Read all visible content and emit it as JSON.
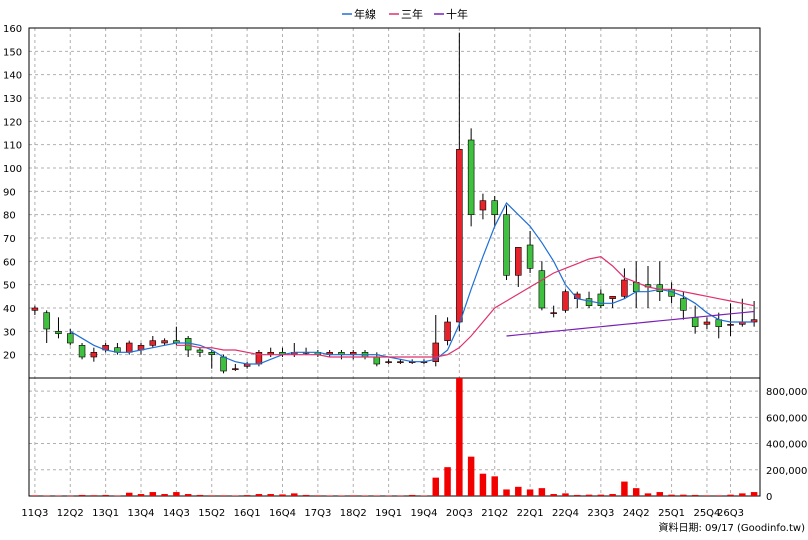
{
  "chart_data": {
    "type": "candlestick+volume",
    "legend": [
      {
        "name": "年線",
        "color": "#1f6fd6"
      },
      {
        "name": "三年",
        "color": "#e0306e"
      },
      {
        "name": "十年",
        "color": "#7a1fb5"
      }
    ],
    "price_axis": {
      "range": [
        10,
        160
      ],
      "ticks": [
        20,
        30,
        40,
        50,
        60,
        70,
        80,
        90,
        100,
        110,
        120,
        130,
        140,
        150,
        160
      ]
    },
    "volume_axis": {
      "range": [
        0,
        900000
      ],
      "tick_values": [
        0,
        200000,
        400000,
        600000,
        800000
      ],
      "tick_labels": [
        "0",
        "200,000",
        "400,000",
        "600,000",
        "800,000"
      ]
    },
    "x_labels": [
      {
        "i": 0,
        "label": "11Q3"
      },
      {
        "i": 3,
        "label": "12Q2"
      },
      {
        "i": 6,
        "label": "13Q1"
      },
      {
        "i": 9,
        "label": "13Q4"
      },
      {
        "i": 12,
        "label": "14Q3"
      },
      {
        "i": 15,
        "label": "15Q2"
      },
      {
        "i": 18,
        "label": "16Q1"
      },
      {
        "i": 21,
        "label": "16Q4"
      },
      {
        "i": 24,
        "label": "17Q3"
      },
      {
        "i": 27,
        "label": "18Q2"
      },
      {
        "i": 30,
        "label": "19Q1"
      },
      {
        "i": 33,
        "label": "19Q4"
      },
      {
        "i": 36,
        "label": "20Q3"
      },
      {
        "i": 39,
        "label": "21Q2"
      },
      {
        "i": 42,
        "label": "22Q1"
      },
      {
        "i": 45,
        "label": "22Q4"
      },
      {
        "i": 48,
        "label": "23Q3"
      },
      {
        "i": 51,
        "label": "24Q2"
      },
      {
        "i": 54,
        "label": "25Q1"
      },
      {
        "i": 57,
        "label": "25Q4"
      },
      {
        "i": 59,
        "label": "26Q3"
      }
    ],
    "candles": [
      [
        39,
        41,
        37,
        40
      ],
      [
        38,
        39,
        25,
        31
      ],
      [
        30,
        36,
        27,
        29
      ],
      [
        29,
        31,
        24,
        25
      ],
      [
        24,
        25,
        18,
        19
      ],
      [
        19,
        23,
        17,
        21
      ],
      [
        22,
        25,
        21,
        24
      ],
      [
        23,
        25,
        20,
        21
      ],
      [
        21,
        26,
        20,
        25
      ],
      [
        22,
        25,
        20,
        24
      ],
      [
        24,
        28,
        23,
        26
      ],
      [
        25,
        27,
        24,
        26
      ],
      [
        26,
        32,
        24,
        25
      ],
      [
        27,
        28,
        19,
        22
      ],
      [
        22,
        23,
        19,
        21
      ],
      [
        21,
        22,
        14,
        20
      ],
      [
        19,
        20,
        12,
        13
      ],
      [
        14,
        16,
        13,
        14
      ],
      [
        15,
        17,
        14,
        16
      ],
      [
        16,
        22,
        15,
        21
      ],
      [
        20,
        23,
        19,
        21
      ],
      [
        21,
        23,
        19,
        20
      ],
      [
        20,
        25,
        19,
        21
      ],
      [
        21,
        23,
        20,
        21
      ],
      [
        21,
        22,
        19,
        20
      ],
      [
        20,
        22,
        19,
        21
      ],
      [
        21,
        22,
        18,
        20
      ],
      [
        20,
        22,
        18,
        21
      ],
      [
        21,
        22,
        18,
        19
      ],
      [
        19,
        21,
        15,
        16
      ],
      [
        17,
        18,
        16,
        17
      ],
      [
        17,
        18,
        16,
        17
      ],
      [
        17,
        18,
        16,
        17
      ],
      [
        17,
        18,
        16,
        17
      ],
      [
        17,
        37,
        15,
        25
      ],
      [
        26,
        36,
        24,
        34
      ],
      [
        34,
        158,
        30,
        108
      ],
      [
        112,
        117,
        75,
        80
      ],
      [
        82,
        89,
        78,
        86
      ],
      [
        86,
        88,
        75,
        80
      ],
      [
        80,
        84,
        52,
        54
      ],
      [
        54,
        66,
        49,
        66
      ],
      [
        67,
        73,
        55,
        57
      ],
      [
        56,
        60,
        39,
        40
      ],
      [
        38,
        41,
        36,
        38
      ],
      [
        39,
        48,
        38,
        47
      ],
      [
        44,
        47,
        40,
        46
      ],
      [
        44,
        47,
        40,
        41
      ],
      [
        46,
        48,
        40,
        41
      ],
      [
        44,
        45,
        40,
        45
      ],
      [
        45,
        57,
        44,
        52
      ],
      [
        51,
        60,
        40,
        47
      ],
      [
        50,
        58,
        40,
        49
      ],
      [
        50,
        60,
        43,
        47
      ],
      [
        48,
        51,
        42,
        45
      ],
      [
        44,
        47,
        35,
        39
      ],
      [
        36,
        41,
        29,
        32
      ],
      [
        33,
        36,
        31,
        34
      ],
      [
        35,
        38,
        27,
        32
      ],
      [
        33,
        42,
        28,
        33
      ],
      [
        33,
        44,
        32,
        34
      ],
      [
        34,
        43,
        32,
        35
      ]
    ],
    "volume": [
      5000,
      3000,
      3000,
      2000,
      8000,
      6000,
      8000,
      3000,
      25000,
      15000,
      30000,
      15000,
      30000,
      15000,
      8000,
      5000,
      5000,
      4000,
      7000,
      15000,
      15000,
      12000,
      20000,
      8000,
      5000,
      4000,
      4000,
      5000,
      4000,
      4000,
      3000,
      3000,
      8000,
      4000,
      140000,
      220000,
      900000,
      300000,
      170000,
      150000,
      50000,
      70000,
      50000,
      60000,
      15000,
      20000,
      8000,
      10000,
      10000,
      15000,
      110000,
      60000,
      20000,
      30000,
      10000,
      10000,
      8000,
      5000,
      5000,
      10000,
      20000,
      30000
    ],
    "lines": {
      "annual": [
        null,
        null,
        null,
        30,
        27,
        24,
        22,
        21,
        21,
        22,
        23,
        24,
        25,
        25,
        24,
        22,
        19,
        17,
        16,
        16,
        18,
        20,
        21,
        21,
        21,
        20,
        20,
        20,
        20,
        20,
        19,
        18,
        17,
        17,
        18,
        22,
        33,
        48,
        62,
        75,
        85,
        80,
        75,
        68,
        60,
        50,
        44,
        43,
        42,
        42,
        44,
        47,
        47,
        48,
        47,
        45,
        42,
        38,
        35,
        34,
        34,
        34
      ],
      "three_year": [
        null,
        null,
        null,
        null,
        null,
        null,
        null,
        null,
        null,
        null,
        null,
        null,
        24,
        24,
        23,
        23,
        22,
        22,
        21,
        20,
        20,
        20,
        20,
        20,
        20,
        19,
        19,
        19,
        19,
        19,
        19,
        19,
        19,
        19,
        19,
        20,
        23,
        28,
        34,
        40,
        43,
        46,
        49,
        52,
        55,
        57,
        59,
        61,
        62,
        58,
        53,
        51,
        49,
        48,
        48,
        47,
        46,
        45,
        44,
        43,
        42,
        41
      ],
      "ten_year": [
        null,
        null,
        null,
        null,
        null,
        null,
        null,
        null,
        null,
        null,
        null,
        null,
        null,
        null,
        null,
        null,
        null,
        null,
        null,
        null,
        null,
        null,
        null,
        null,
        null,
        null,
        null,
        null,
        null,
        null,
        null,
        null,
        null,
        null,
        null,
        null,
        null,
        null,
        null,
        null,
        28,
        28.5,
        29,
        29.5,
        30,
        30.5,
        31,
        31.5,
        32,
        32.5,
        33,
        33.5,
        34,
        34.5,
        35,
        35.5,
        36,
        36.5,
        37,
        37.5,
        38,
        38.5
      ]
    },
    "colors": {
      "up": "#e8222a",
      "down": "#3fc03f",
      "volume": "#f20000",
      "grid": "#b0b0b0"
    },
    "grid": true,
    "legend_position": "top-center"
  },
  "source_label": "資料日期: 09/17  (Goodinfo.tw)"
}
